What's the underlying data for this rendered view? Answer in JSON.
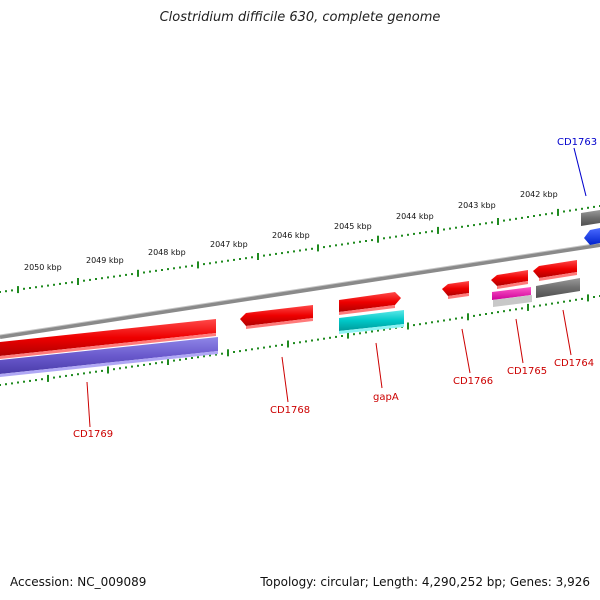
{
  "title": "Clostridium difficile 630, complete genome",
  "footer": {
    "accession": "Accession: NC_009089",
    "summary": "Topology: circular; Length: 4,290,252 bp; Genes: 3,926"
  },
  "scale": {
    "tick_color": "#1f8a1f",
    "labels": [
      "2050 kbp",
      "2049 kbp",
      "2048 kbp",
      "2047 kbp",
      "2046 kbp",
      "2045 kbp",
      "2044 kbp",
      "2043 kbp",
      "2042 kbp"
    ]
  },
  "genes": [
    {
      "name": "CD1769",
      "color": "#cc0000"
    },
    {
      "name": "CD1768",
      "color": "#cc0000"
    },
    {
      "name": "gapA",
      "color": "#cc0000"
    },
    {
      "name": "CD1766",
      "color": "#cc0000"
    },
    {
      "name": "CD1765",
      "color": "#cc0000"
    },
    {
      "name": "CD1764",
      "color": "#cc0000"
    },
    {
      "name": "CD1763",
      "color": "#0000cc"
    }
  ]
}
